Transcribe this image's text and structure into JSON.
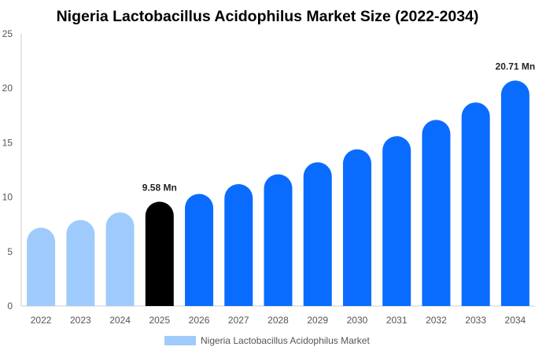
{
  "chart_data": {
    "type": "bar",
    "title": "Nigeria Lactobacillus Acidophilus Market Size (2022-2034)",
    "xlabel": "",
    "ylabel": "",
    "categories": [
      "2022",
      "2023",
      "2024",
      "2025",
      "2026",
      "2027",
      "2028",
      "2029",
      "2030",
      "2031",
      "2032",
      "2033",
      "2034"
    ],
    "series": [
      {
        "name": "Nigeria Lactobacillus Acidophilus Market",
        "values": [
          7.2,
          7.9,
          8.6,
          9.58,
          10.3,
          11.2,
          12.1,
          13.2,
          14.4,
          15.6,
          17.1,
          18.7,
          20.71
        ]
      }
    ],
    "ylim": [
      0,
      25
    ],
    "yticks": [
      0,
      5,
      10,
      15,
      20,
      25
    ],
    "data_labels": [
      {
        "index": 3,
        "text": "9.58 Mn"
      },
      {
        "index": 12,
        "text": "20.71 Mn"
      }
    ],
    "colors": {
      "historical": "#9ecbfc",
      "current": "#000000",
      "forecast": "#0a6cff",
      "axis": "#cccccc"
    },
    "bar_style": {
      "historical_index_end": 2,
      "current_index": 3
    },
    "legend": {
      "position": "bottom-center",
      "swatch_color": "#9ecbfc"
    },
    "grid": false
  }
}
